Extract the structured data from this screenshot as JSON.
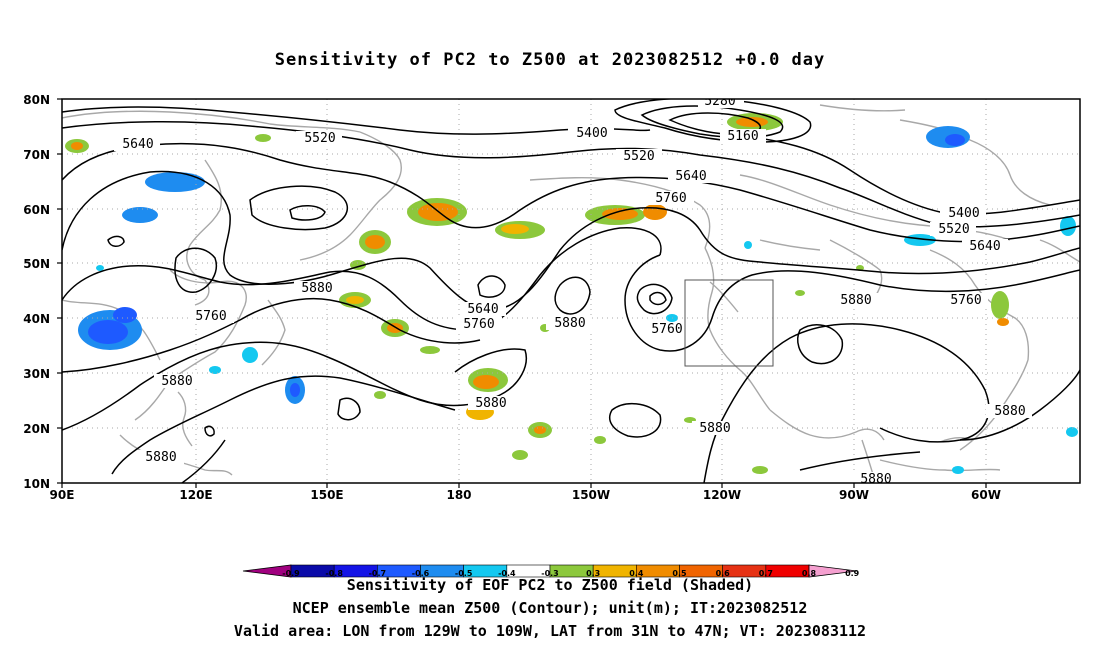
{
  "title": "Sensitivity of PC2 to Z500 at 2023082512 +0.0 day",
  "map": {
    "lat_labels": [
      "80N",
      "70N",
      "60N",
      "50N",
      "40N",
      "30N",
      "20N",
      "10N"
    ],
    "lon_labels": [
      "90E",
      "120E",
      "150E",
      "180",
      "150W",
      "120W",
      "90W",
      "60W"
    ],
    "contour_labels": [
      "5280",
      "5160",
      "5400",
      "5640",
      "5520",
      "5520",
      "5640",
      "5760",
      "5400",
      "5520",
      "5640",
      "5880",
      "5640",
      "5760",
      "5880",
      "5760",
      "5880",
      "5760",
      "5880",
      "5880",
      "5880",
      "5880",
      "5880",
      "5880",
      "5760",
      "5880"
    ]
  },
  "colorbar": {
    "tick_labels": [
      "-0.9",
      "-0.8",
      "-0.7",
      "-0.6",
      "-0.5",
      "-0.4",
      "-0.3",
      "0.3",
      "0.4",
      "0.5",
      "0.6",
      "0.7",
      "0.8",
      "0.9"
    ],
    "colors": [
      "#a0007f",
      "#0a0aa8",
      "#1414e6",
      "#1e5aff",
      "#1e8cf0",
      "#14c8f0",
      "#ffffff",
      "#8cc83c",
      "#f0b400",
      "#f08c00",
      "#f06400",
      "#e63214",
      "#f00000",
      "#f5a0d0"
    ]
  },
  "footer": {
    "line1": "Sensitivity of EOF PC2 to Z500 field (Shaded)",
    "line2": "NCEP ensemble mean Z500 (Contour); unit(m); IT:2023082512",
    "line3": "Valid area: LON from 129W to 109W, LAT from 31N to 47N; VT: 2023083112"
  }
}
